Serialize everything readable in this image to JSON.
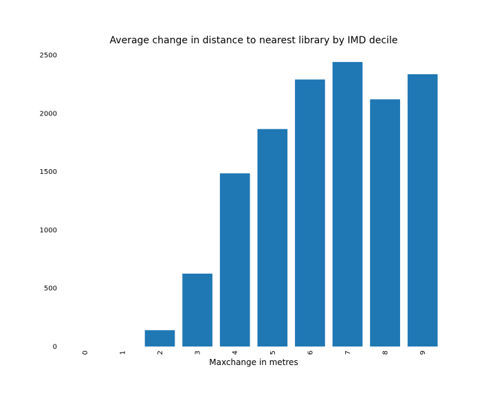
{
  "chart_data": {
    "type": "bar",
    "title": "Average change in distance to nearest library by IMD decile",
    "xlabel": "Maxchange in metres",
    "ylabel": "",
    "categories": [
      "0",
      "1",
      "2",
      "3",
      "4",
      "5",
      "6",
      "7",
      "8",
      "9"
    ],
    "values": [
      0,
      0,
      140,
      625,
      1485,
      1865,
      2290,
      2440,
      2120,
      2335
    ],
    "ylim": [
      0,
      2500
    ],
    "yticks": [
      0,
      500,
      1000,
      1500,
      2000,
      2500
    ],
    "x_tick_rotation": "vertical",
    "grid": false,
    "legend": "none",
    "bar_color": "#1f77b4"
  }
}
